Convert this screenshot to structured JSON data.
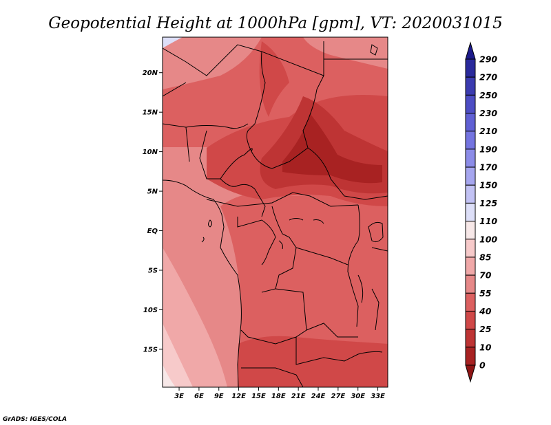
{
  "title": "Geopotential Height at 1000hPa [gpm], VT: 2020031015",
  "credit": "GrADS: IGES/COLA",
  "map": {
    "lat_ticks": [
      {
        "label": "20N",
        "lat": 20
      },
      {
        "label": "15N",
        "lat": 15
      },
      {
        "label": "10N",
        "lat": 10
      },
      {
        "label": "5N",
        "lat": 5
      },
      {
        "label": "EQ",
        "lat": 0
      },
      {
        "label": "5S",
        "lat": -5
      },
      {
        "label": "10S",
        "lat": -10
      },
      {
        "label": "15S",
        "lat": -15
      }
    ],
    "lon_ticks": [
      {
        "label": "3E",
        "lon": 3
      },
      {
        "label": "6E",
        "lon": 6
      },
      {
        "label": "9E",
        "lon": 9
      },
      {
        "label": "12E",
        "lon": 12
      },
      {
        "label": "15E",
        "lon": 15
      },
      {
        "label": "18E",
        "lon": 18
      },
      {
        "label": "21E",
        "lon": 21
      },
      {
        "label": "24E",
        "lon": 24
      },
      {
        "label": "27E",
        "lon": 27
      },
      {
        "label": "30E",
        "lon": 30
      },
      {
        "label": "33E",
        "lon": 33
      }
    ],
    "extent": {
      "lon_min": 0.5,
      "lon_max": 34.5,
      "lat_min": -19.8,
      "lat_max": 24.5
    }
  },
  "colorbar": {
    "labels": [
      "290",
      "270",
      "250",
      "230",
      "210",
      "190",
      "170",
      "150",
      "125",
      "110",
      "100",
      "85",
      "70",
      "55",
      "40",
      "25",
      "10",
      "0"
    ],
    "colors": [
      "#1c1a8a",
      "#2a2a9c",
      "#3b3bb0",
      "#4d4dc4",
      "#6060d4",
      "#7474e0",
      "#8c8ce8",
      "#a6a6ef",
      "#c2c2f4",
      "#dddff8",
      "#f7e8e8",
      "#f7caca",
      "#f0a8a8",
      "#e68888",
      "#dc6060",
      "#d04848",
      "#be3434",
      "#a82222",
      "#8e1414"
    ]
  }
}
